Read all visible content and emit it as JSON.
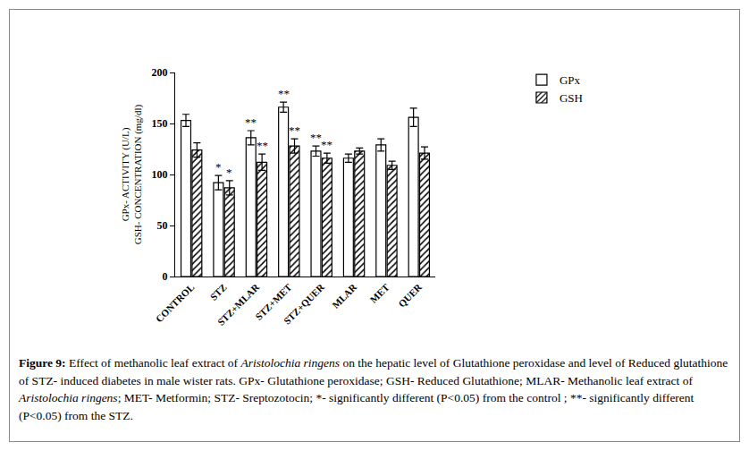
{
  "chart_data": {
    "type": "bar",
    "categories": [
      "CONTROL",
      "STZ",
      "STZ+MLAR",
      "STZ+MET",
      "STZ+QUER",
      "MLAR",
      "MET",
      "QUER"
    ],
    "series": [
      {
        "name": "GPx",
        "color": "#ffffff",
        "values": [
          153,
          92,
          136,
          166,
          123,
          116,
          129,
          156
        ],
        "errors": [
          6,
          7,
          7,
          5,
          5,
          4,
          6,
          9
        ]
      },
      {
        "name": "GSH",
        "color": "#ffffff",
        "marker": "hatched",
        "values": [
          124,
          87,
          112,
          128,
          116,
          123,
          109,
          121
        ],
        "errors": [
          7,
          7,
          8,
          7,
          5,
          3,
          4,
          6
        ]
      }
    ],
    "y_label": [
      "GPx- ACTIVITY (U/L)",
      "GSH- CONCENTRATION (mg/dl)"
    ],
    "ylim": [
      0,
      200
    ],
    "yticks": [
      0,
      50,
      100,
      150,
      200
    ],
    "grid": false,
    "legend": "top right",
    "annotations": [
      {
        "category": "STZ",
        "series": "GPx",
        "text": "*"
      },
      {
        "category": "STZ",
        "series": "GSH",
        "text": "*"
      },
      {
        "category": "STZ+MLAR",
        "series": "GPx",
        "text": "**"
      },
      {
        "category": "STZ+MLAR",
        "series": "GSH",
        "text": "**"
      },
      {
        "category": "STZ+MET",
        "series": "GPx",
        "text": "**"
      },
      {
        "category": "STZ+MET",
        "series": "GSH",
        "text": "**"
      },
      {
        "category": "STZ+QUER",
        "series": "GPx",
        "text": "**"
      },
      {
        "category": "STZ+QUER",
        "series": "GSH",
        "text": "**"
      }
    ],
    "caption": [
      {
        "text": "Figure 9:",
        "bold": true
      },
      {
        "text": " Effect of methanolic leaf extract of "
      },
      {
        "text": "Aristolochia ringens",
        "italic": true
      },
      {
        "text": " on the hepatic level of Glutathione peroxidase and level of Reduced glutathione of  STZ- induced diabetes in male wister rats. GPx- Glutathione peroxidase; GSH- Reduced Glutathione; MLAR- Methanolic leaf extract of "
      },
      {
        "text": "Aristolochia ringens",
        "italic": true
      },
      {
        "text": "; MET- Metformin; STZ- Sreptozotocin; *- significantly different (P<0.05) from the control ; **- significantly different (P<0.05) from the STZ."
      }
    ]
  }
}
